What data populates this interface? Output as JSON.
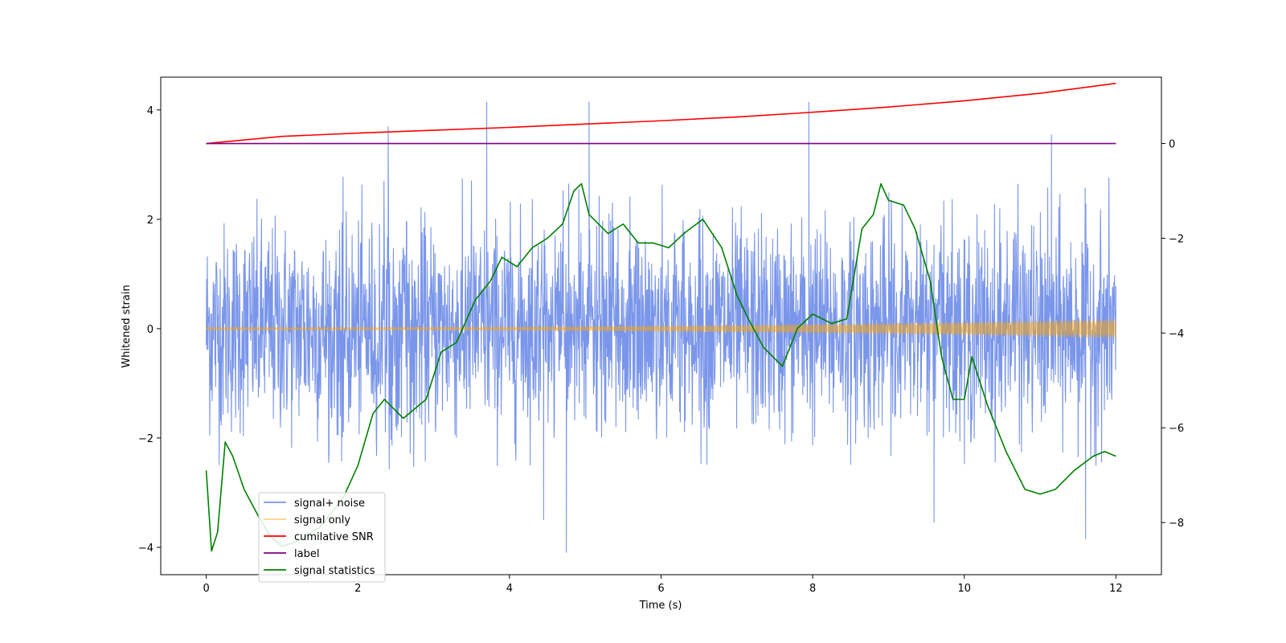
{
  "chart_data": {
    "type": "line",
    "xlabel": "Time (s)",
    "ylabel": "Whitened strain",
    "xlim": [
      -0.6,
      12.6
    ],
    "ylim_left": [
      -4.5,
      4.6
    ],
    "ylim_right": [
      -9.1,
      1.4
    ],
    "x_ticks": [
      0,
      2,
      4,
      6,
      8,
      10,
      12
    ],
    "y_ticks_left": [
      -4,
      -2,
      0,
      2,
      4
    ],
    "y_ticks_right": [
      -8,
      -6,
      -4,
      -2,
      0
    ],
    "legend_position": "lower-left",
    "series": [
      {
        "name": "signal+ noise",
        "axis": "left",
        "color": "#4169e1",
        "style": "noise band",
        "x_range": [
          0,
          12
        ],
        "envelope_upper": 2.8,
        "envelope_lower": -2.6,
        "spikes": [
          {
            "x": 3.7,
            "y": 4.15
          },
          {
            "x": 5.05,
            "y": 4.15
          },
          {
            "x": 7.95,
            "y": 4.15
          },
          {
            "x": 2.4,
            "y": 3.7
          },
          {
            "x": 11.15,
            "y": 3.55
          },
          {
            "x": 4.75,
            "y": -4.1
          },
          {
            "x": 11.6,
            "y": -3.85
          },
          {
            "x": 4.45,
            "y": -3.5
          },
          {
            "x": 9.6,
            "y": -3.55
          }
        ]
      },
      {
        "name": "signal only",
        "axis": "left",
        "color": "#ffa500",
        "style": "chirp",
        "x_range": [
          0,
          12
        ],
        "amplitude_start": 0.02,
        "amplitude_end": 0.18
      },
      {
        "name": "cumilative SNR",
        "axis": "right",
        "color": "#ff0000",
        "x": [
          0,
          1,
          2,
          3,
          4,
          5,
          6,
          7,
          8,
          9,
          10,
          11,
          12
        ],
        "values": [
          0.0,
          0.15,
          0.22,
          0.28,
          0.34,
          0.41,
          0.48,
          0.56,
          0.66,
          0.77,
          0.9,
          1.06,
          1.27
        ]
      },
      {
        "name": "label",
        "axis": "right",
        "color": "#800080",
        "x": [
          0,
          12
        ],
        "values": [
          0,
          0
        ]
      },
      {
        "name": "signal statistics",
        "axis": "right",
        "color": "#008000",
        "x": [
          0,
          0.07,
          0.15,
          0.25,
          0.35,
          0.5,
          0.7,
          0.85,
          1.0,
          1.2,
          1.5,
          1.8,
          2.0,
          2.2,
          2.35,
          2.6,
          2.9,
          3.1,
          3.3,
          3.55,
          3.75,
          3.9,
          4.1,
          4.3,
          4.5,
          4.7,
          4.85,
          4.95,
          5.05,
          5.3,
          5.5,
          5.7,
          5.9,
          6.1,
          6.3,
          6.55,
          6.8,
          7.0,
          7.15,
          7.35,
          7.6,
          7.8,
          8.0,
          8.25,
          8.45,
          8.65,
          8.8,
          8.9,
          9.0,
          9.2,
          9.35,
          9.55,
          9.7,
          9.85,
          10.0,
          10.1,
          10.3,
          10.55,
          10.8,
          11.0,
          11.2,
          11.45,
          11.7,
          11.85,
          12.0
        ],
        "values": [
          -6.9,
          -8.6,
          -8.2,
          -6.3,
          -6.6,
          -7.3,
          -7.9,
          -8.3,
          -8.5,
          -8.4,
          -8.1,
          -7.5,
          -6.8,
          -5.7,
          -5.4,
          -5.8,
          -5.4,
          -4.4,
          -4.2,
          -3.3,
          -2.9,
          -2.4,
          -2.6,
          -2.2,
          -2.0,
          -1.7,
          -1.0,
          -0.85,
          -1.5,
          -1.9,
          -1.7,
          -2.1,
          -2.1,
          -2.2,
          -1.9,
          -1.6,
          -2.2,
          -3.2,
          -3.7,
          -4.3,
          -4.7,
          -3.9,
          -3.6,
          -3.8,
          -3.7,
          -1.8,
          -1.5,
          -0.85,
          -1.2,
          -1.3,
          -1.8,
          -2.9,
          -4.5,
          -5.4,
          -5.4,
          -4.5,
          -5.5,
          -6.5,
          -7.3,
          -7.4,
          -7.3,
          -6.9,
          -6.6,
          -6.5,
          -6.6
        ]
      }
    ]
  }
}
